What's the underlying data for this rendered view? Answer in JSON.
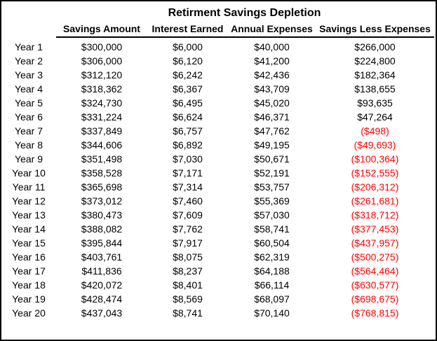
{
  "title": "Retirment Savings Depletion",
  "colors": {
    "background": "#ffffff",
    "frame_border": "#000000",
    "text": "#000000",
    "negative_value": "#ff0000",
    "header_rule": "#000000"
  },
  "table": {
    "year_header": "",
    "columns": [
      "Savings Amount",
      "Interest Earned",
      "Annual Expenses",
      "Savings Less Expenses"
    ],
    "rows": [
      {
        "year": "Year 1",
        "savings": "$300,000",
        "interest": "$6,000",
        "expenses": "$40,000",
        "net": "$266,000"
      },
      {
        "year": "Year 2",
        "savings": "$306,000",
        "interest": "$6,120",
        "expenses": "$41,200",
        "net": "$224,800"
      },
      {
        "year": "Year 3",
        "savings": "$312,120",
        "interest": "$6,242",
        "expenses": "$42,436",
        "net": "$182,364"
      },
      {
        "year": "Year 4",
        "savings": "$318,362",
        "interest": "$6,367",
        "expenses": "$43,709",
        "net": "$138,655"
      },
      {
        "year": "Year 5",
        "savings": "$324,730",
        "interest": "$6,495",
        "expenses": "$45,020",
        "net": "$93,635"
      },
      {
        "year": "Year 6",
        "savings": "$331,224",
        "interest": "$6,624",
        "expenses": "$46,371",
        "net": "$47,264"
      },
      {
        "year": "Year 7",
        "savings": "$337,849",
        "interest": "$6,757",
        "expenses": "$47,762",
        "net": "($498)"
      },
      {
        "year": "Year 8",
        "savings": "$344,606",
        "interest": "$6,892",
        "expenses": "$49,195",
        "net": "($49,693)"
      },
      {
        "year": "Year 9",
        "savings": "$351,498",
        "interest": "$7,030",
        "expenses": "$50,671",
        "net": "($100,364)"
      },
      {
        "year": "Year 10",
        "savings": "$358,528",
        "interest": "$7,171",
        "expenses": "$52,191",
        "net": "($152,555)"
      },
      {
        "year": "Year 11",
        "savings": "$365,698",
        "interest": "$7,314",
        "expenses": "$53,757",
        "net": "($206,312)"
      },
      {
        "year": "Year 12",
        "savings": "$373,012",
        "interest": "$7,460",
        "expenses": "$55,369",
        "net": "($261,681)"
      },
      {
        "year": "Year 13",
        "savings": "$380,473",
        "interest": "$7,609",
        "expenses": "$57,030",
        "net": "($318,712)"
      },
      {
        "year": "Year 14",
        "savings": "$388,082",
        "interest": "$7,762",
        "expenses": "$58,741",
        "net": "($377,453)"
      },
      {
        "year": "Year 15",
        "savings": "$395,844",
        "interest": "$7,917",
        "expenses": "$60,504",
        "net": "($437,957)"
      },
      {
        "year": "Year 16",
        "savings": "$403,761",
        "interest": "$8,075",
        "expenses": "$62,319",
        "net": "($500,275)"
      },
      {
        "year": "Year 17",
        "savings": "$411,836",
        "interest": "$8,237",
        "expenses": "$64,188",
        "net": "($564,464)"
      },
      {
        "year": "Year 18",
        "savings": "$420,072",
        "interest": "$8,401",
        "expenses": "$66,114",
        "net": "($630,577)"
      },
      {
        "year": "Year 19",
        "savings": "$428,474",
        "interest": "$8,569",
        "expenses": "$68,097",
        "net": "($698,675)"
      },
      {
        "year": "Year 20",
        "savings": "$437,043",
        "interest": "$8,741",
        "expenses": "$70,140",
        "net": "($768,815)"
      }
    ]
  },
  "chart_data": {
    "type": "table",
    "title": "Retirment Savings Depletion",
    "columns": [
      "Year",
      "Savings Amount",
      "Interest Earned",
      "Annual Expenses",
      "Savings Less Expenses"
    ],
    "rows": [
      [
        1,
        300000,
        6000,
        40000,
        266000
      ],
      [
        2,
        306000,
        6120,
        41200,
        224800
      ],
      [
        3,
        312120,
        6242,
        42436,
        182364
      ],
      [
        4,
        318362,
        6367,
        43709,
        138655
      ],
      [
        5,
        324730,
        6495,
        45020,
        93635
      ],
      [
        6,
        331224,
        6624,
        46371,
        47264
      ],
      [
        7,
        337849,
        6757,
        47762,
        -498
      ],
      [
        8,
        344606,
        6892,
        49195,
        -49693
      ],
      [
        9,
        351498,
        7030,
        50671,
        -100364
      ],
      [
        10,
        358528,
        7171,
        52191,
        -152555
      ],
      [
        11,
        365698,
        7314,
        53757,
        -206312
      ],
      [
        12,
        373012,
        7460,
        55369,
        -261681
      ],
      [
        13,
        380473,
        7609,
        57030,
        -318712
      ],
      [
        14,
        388082,
        7762,
        58741,
        -377453
      ],
      [
        15,
        395844,
        7917,
        60504,
        -437957
      ],
      [
        16,
        403761,
        8075,
        62319,
        -500275
      ],
      [
        17,
        411836,
        8237,
        64188,
        -564464
      ],
      [
        18,
        420072,
        8401,
        66114,
        -630577
      ],
      [
        19,
        428474,
        8569,
        68097,
        -698675
      ],
      [
        20,
        437043,
        8741,
        70140,
        -768815
      ]
    ],
    "notes": "Negative values displayed in red with parentheses; currency format with $ and thousands separators; header row underlined across the four value columns"
  }
}
